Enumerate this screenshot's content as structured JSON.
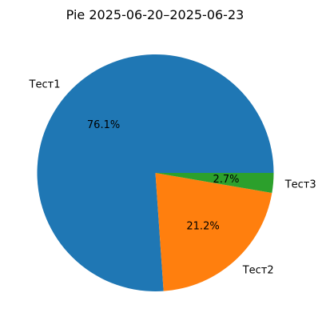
{
  "chart_data": {
    "type": "pie",
    "title": "Pie 2025-06-20–2025-06-23",
    "slices": [
      {
        "label": "Тест1",
        "value": 76.1,
        "pct_label": "76.1%",
        "color": "#1f77b4"
      },
      {
        "label": "Тест2",
        "value": 21.2,
        "pct_label": "21.2%",
        "color": "#ff7f0e"
      },
      {
        "label": "Тест3",
        "value": 2.7,
        "pct_label": "2.7%",
        "color": "#2ca02c"
      }
    ],
    "start_angle": "0°, counterclockwise",
    "legend": "none"
  }
}
